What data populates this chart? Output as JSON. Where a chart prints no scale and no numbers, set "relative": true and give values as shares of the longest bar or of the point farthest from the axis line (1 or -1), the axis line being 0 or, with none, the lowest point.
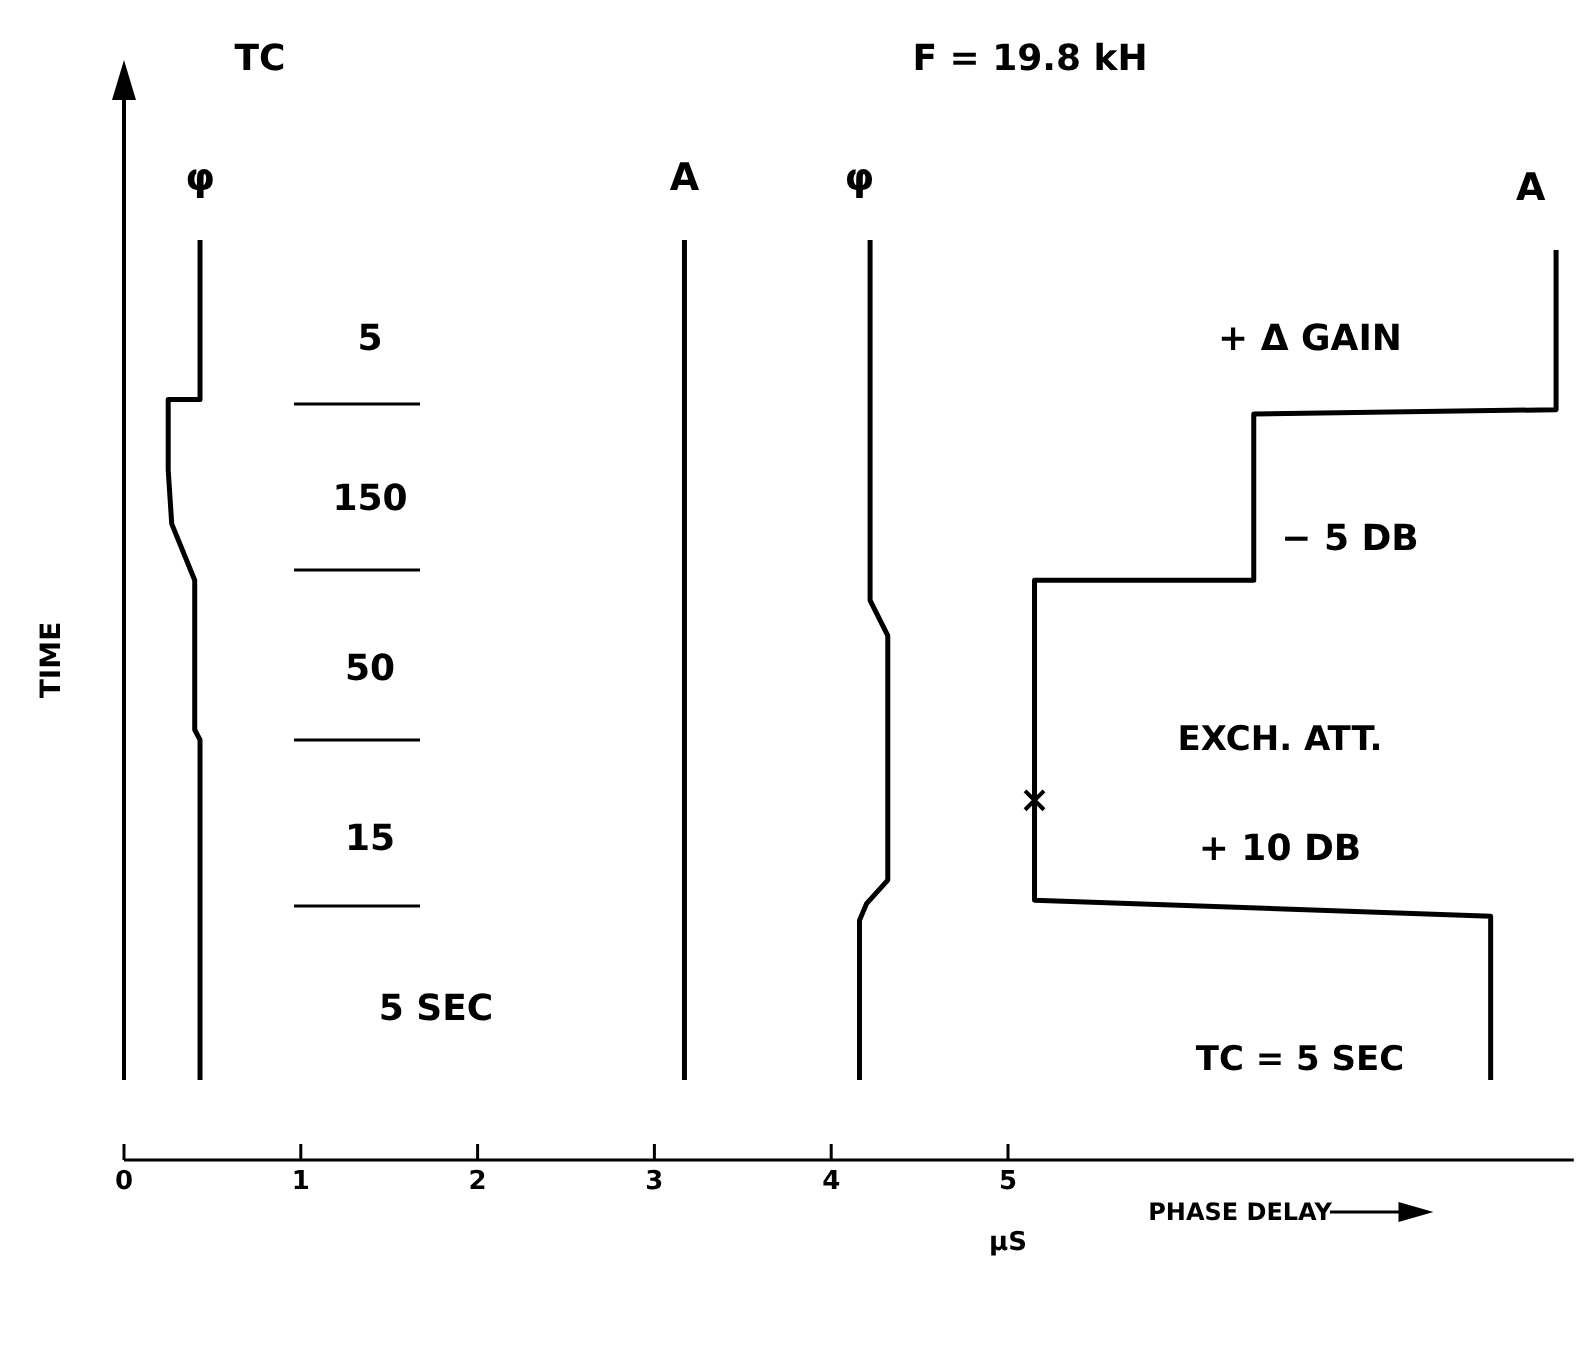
{
  "chart_data": {
    "type": "line",
    "relative": true,
    "xlabel": "μS",
    "ylabel": "TIME",
    "xlim": [
      0,
      8.2
    ],
    "xticks": [
      0,
      1,
      2,
      3,
      4,
      5
    ],
    "line_style": "solid",
    "marker": "none",
    "annotations": [
      "TC",
      "F = 19.8 kH",
      "5",
      "150",
      "50",
      "15",
      "5 SEC",
      "+ Δ GAIN",
      "− 5 DB",
      "EXCH. ATT.",
      "+ 10 DB",
      "TC = 5 SEC",
      "PHASE DELAY"
    ],
    "series": [
      {
        "name": "φ",
        "color": "#000000",
        "x": [
          0.43,
          0.43,
          0.4,
          0.4,
          0.27,
          0.25,
          0.25,
          0.43,
          0.43
        ],
        "values": [
          0,
          0.405,
          0.417,
          0.595,
          0.662,
          0.726,
          0.81,
          0.81,
          1
        ]
      },
      {
        "name": "A",
        "color": "#000000",
        "x": [
          3.17,
          3.17
        ],
        "values": [
          0,
          1
        ]
      },
      {
        "name": "φ",
        "color": "#000000",
        "x": [
          4.16,
          4.16,
          4.2,
          4.32,
          4.32,
          4.22,
          4.22
        ],
        "values": [
          0,
          0.19,
          0.21,
          0.238,
          0.529,
          0.571,
          1
        ]
      },
      {
        "name": "A",
        "color": "#000000",
        "x": [
          7.73,
          7.73,
          5.15,
          5.15,
          6.39,
          6.39,
          8.1,
          8.1
        ],
        "values": [
          0,
          0.195,
          0.214,
          0.595,
          0.595,
          0.793,
          0.798,
          0.988
        ]
      },
      {
        "type": "scatter",
        "marker": "cross",
        "color": "#000000",
        "x": [
          5.15
        ],
        "values": [
          0.333
        ]
      }
    ]
  }
}
